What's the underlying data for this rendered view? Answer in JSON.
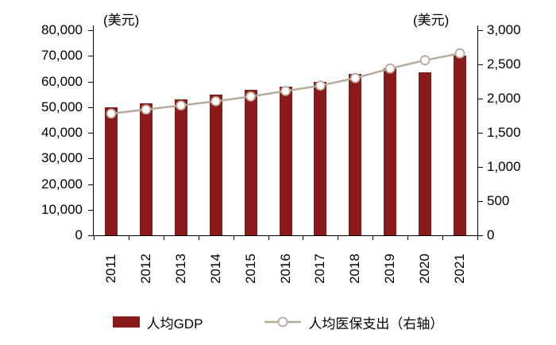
{
  "chart_data": {
    "type": "bar",
    "categories": [
      "2011",
      "2012",
      "2013",
      "2014",
      "2015",
      "2016",
      "2017",
      "2018",
      "2019",
      "2020",
      "2021"
    ],
    "series": [
      {
        "name": "人均GDP",
        "type": "bar",
        "axis": "left",
        "color": "#8B1A1A",
        "values": [
          49900,
          51600,
          53100,
          55000,
          56800,
          57900,
          59900,
          62800,
          65100,
          63500,
          70200
        ]
      },
      {
        "name": "人均医保支出（右轴）",
        "type": "line",
        "axis": "right",
        "color": "#B5AB9B",
        "values": [
          1780,
          1840,
          1900,
          1960,
          2030,
          2110,
          2190,
          2300,
          2440,
          2560,
          2660
        ]
      }
    ],
    "left_axis": {
      "label": "(美元)",
      "min": 0,
      "max": 80000,
      "step": 10000
    },
    "right_axis": {
      "label": "(美元)",
      "min": 0,
      "max": 3000,
      "step": 500
    },
    "grid": false,
    "legend_position": "bottom"
  },
  "colors": {
    "bar": "#8B1A1A",
    "line": "#B5AB9B",
    "axis": "#000000",
    "marker_fill": "#FFFFFF"
  }
}
